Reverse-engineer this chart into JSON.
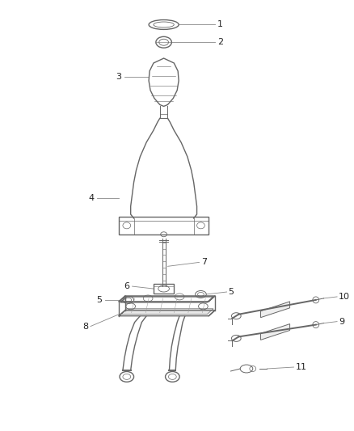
{
  "bg_color": "#ffffff",
  "line_color": "#666666",
  "label_color": "#222222",
  "fig_width": 4.38,
  "fig_height": 5.33,
  "dpi": 100
}
